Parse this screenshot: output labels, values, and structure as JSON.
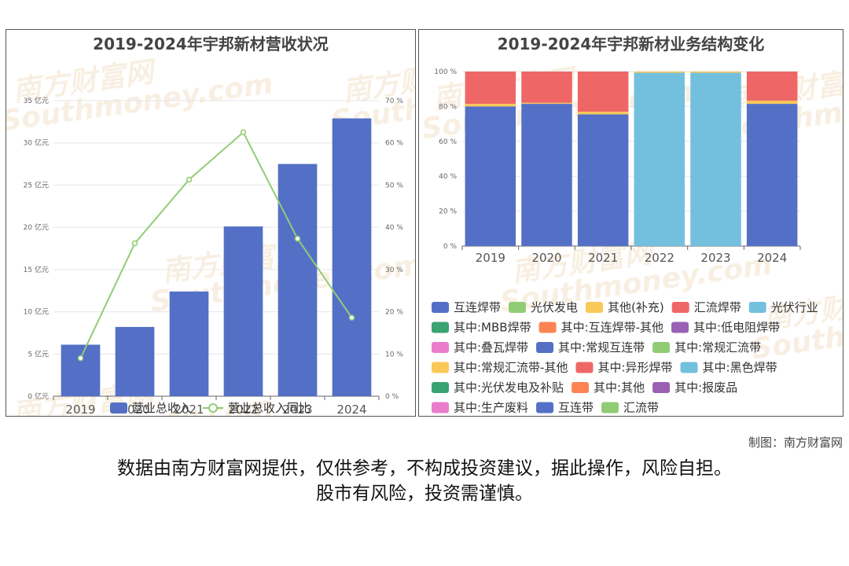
{
  "credit": "制图：南方财富网",
  "disclaimer": {
    "line1": "数据由南方财富网提供，仅供参考，不构成投资建议，据此操作，风险自担。",
    "line2": "股市有风险，投资需谨慎。"
  },
  "watermark": {
    "cn": "南方财富网",
    "en": "Southmoney.com"
  },
  "chart_data": [
    {
      "type": "bar",
      "title": "2019-2024年宇邦新材营收状况",
      "categories": [
        "2019",
        "2020",
        "2021",
        "2022",
        "2023",
        "2024"
      ],
      "y_ticks": [
        "0 亿元",
        "5 亿元",
        "10 亿元",
        "15 亿元",
        "20 亿元",
        "25 亿元",
        "30 亿元",
        "35 亿元"
      ],
      "y2_ticks": [
        "0 %",
        "10 %",
        "20 %",
        "30 %",
        "40 %",
        "50 %",
        "60 %",
        "70 %"
      ],
      "ylim": [
        0,
        35
      ],
      "y2lim": [
        0,
        70
      ],
      "grid": true,
      "legend_position": "bottom",
      "series": [
        {
          "name": "营业总收入",
          "kind": "bar",
          "axis": "left",
          "color": "#5470c6",
          "values": [
            6.1,
            8.2,
            12.4,
            20.1,
            27.5,
            32.9
          ]
        },
        {
          "name": "营业总收入同比",
          "kind": "line",
          "axis": "right",
          "color": "#91cc75",
          "values": [
            9.0,
            36.2,
            51.3,
            62.5,
            37.3,
            18.6
          ]
        }
      ]
    },
    {
      "type": "bar",
      "stacked": true,
      "title": "2019-2024年宇邦新材业务结构变化",
      "categories": [
        "2019",
        "2020",
        "2021",
        "2022",
        "2023",
        "2024"
      ],
      "y_ticks": [
        "0 %",
        "20 %",
        "40 %",
        "60 %",
        "80 %",
        "100 %"
      ],
      "ylim": [
        0,
        100
      ],
      "grid": true,
      "legend_position": "bottom",
      "series": [
        {
          "name": "互连焊带",
          "color": "#5470c6",
          "values": [
            80.0,
            81.5,
            75.5,
            0,
            0,
            81.5
          ]
        },
        {
          "name": "光伏发电",
          "color": "#91cc75",
          "values": [
            0,
            0,
            0,
            0,
            0,
            0
          ]
        },
        {
          "name": "其他(补充)",
          "color": "#fac858",
          "values": [
            1.5,
            0.6,
            1.5,
            0,
            0,
            1.8
          ]
        },
        {
          "name": "汇流焊带",
          "color": "#ee6666",
          "values": [
            18.5,
            17.9,
            23.0,
            0,
            0,
            16.7
          ]
        },
        {
          "name": "光伏行业",
          "color": "#73c0de",
          "values": [
            0,
            0,
            0,
            99.3,
            99.3,
            0
          ]
        },
        {
          "name": "其中:MBB焊带",
          "color": "#3ba272",
          "values": [
            0,
            0,
            0,
            0,
            0,
            0
          ]
        },
        {
          "name": "其中:互连焊带-其他",
          "color": "#fc8452",
          "values": [
            0,
            0,
            0,
            0,
            0,
            0
          ]
        },
        {
          "name": "其中:低电阻焊带",
          "color": "#9a60b4",
          "values": [
            0,
            0,
            0,
            0,
            0,
            0
          ]
        },
        {
          "name": "其中:叠瓦焊带",
          "color": "#ea7ccc",
          "values": [
            0,
            0,
            0,
            0,
            0,
            0
          ]
        },
        {
          "name": "其中:常规互连带",
          "color": "#5470c6",
          "values": [
            0,
            0,
            0,
            0,
            0,
            0
          ]
        },
        {
          "name": "其中:常规汇流带",
          "color": "#91cc75",
          "values": [
            0,
            0,
            0,
            0,
            0,
            0
          ]
        },
        {
          "name": "其中:常规汇流带-其他",
          "color": "#fac858",
          "values": [
            0,
            0,
            0,
            0.7,
            0.7,
            0
          ]
        },
        {
          "name": "其中:异形焊带",
          "color": "#ee6666",
          "values": [
            0,
            0,
            0,
            0,
            0,
            0
          ]
        },
        {
          "name": "其中:黑色焊带",
          "color": "#73c0de",
          "values": [
            0,
            0,
            0,
            0,
            0,
            0
          ]
        },
        {
          "name": "其中:光伏发电及补贴",
          "color": "#3ba272",
          "values": [
            0,
            0,
            0,
            0,
            0,
            0
          ]
        },
        {
          "name": "其中:其他",
          "color": "#fc8452",
          "values": [
            0,
            0,
            0,
            0,
            0,
            0
          ]
        },
        {
          "name": "其中:报废品",
          "color": "#9a60b4",
          "values": [
            0,
            0,
            0,
            0,
            0,
            0
          ]
        },
        {
          "name": "其中:生产废料",
          "color": "#ea7ccc",
          "values": [
            0,
            0,
            0,
            0,
            0,
            0
          ]
        },
        {
          "name": "互连带",
          "color": "#5470c6",
          "values": [
            0,
            0,
            0,
            0,
            0,
            0
          ]
        },
        {
          "name": "汇流带",
          "color": "#91cc75",
          "values": [
            0,
            0,
            0,
            0,
            0,
            0
          ]
        }
      ]
    }
  ]
}
